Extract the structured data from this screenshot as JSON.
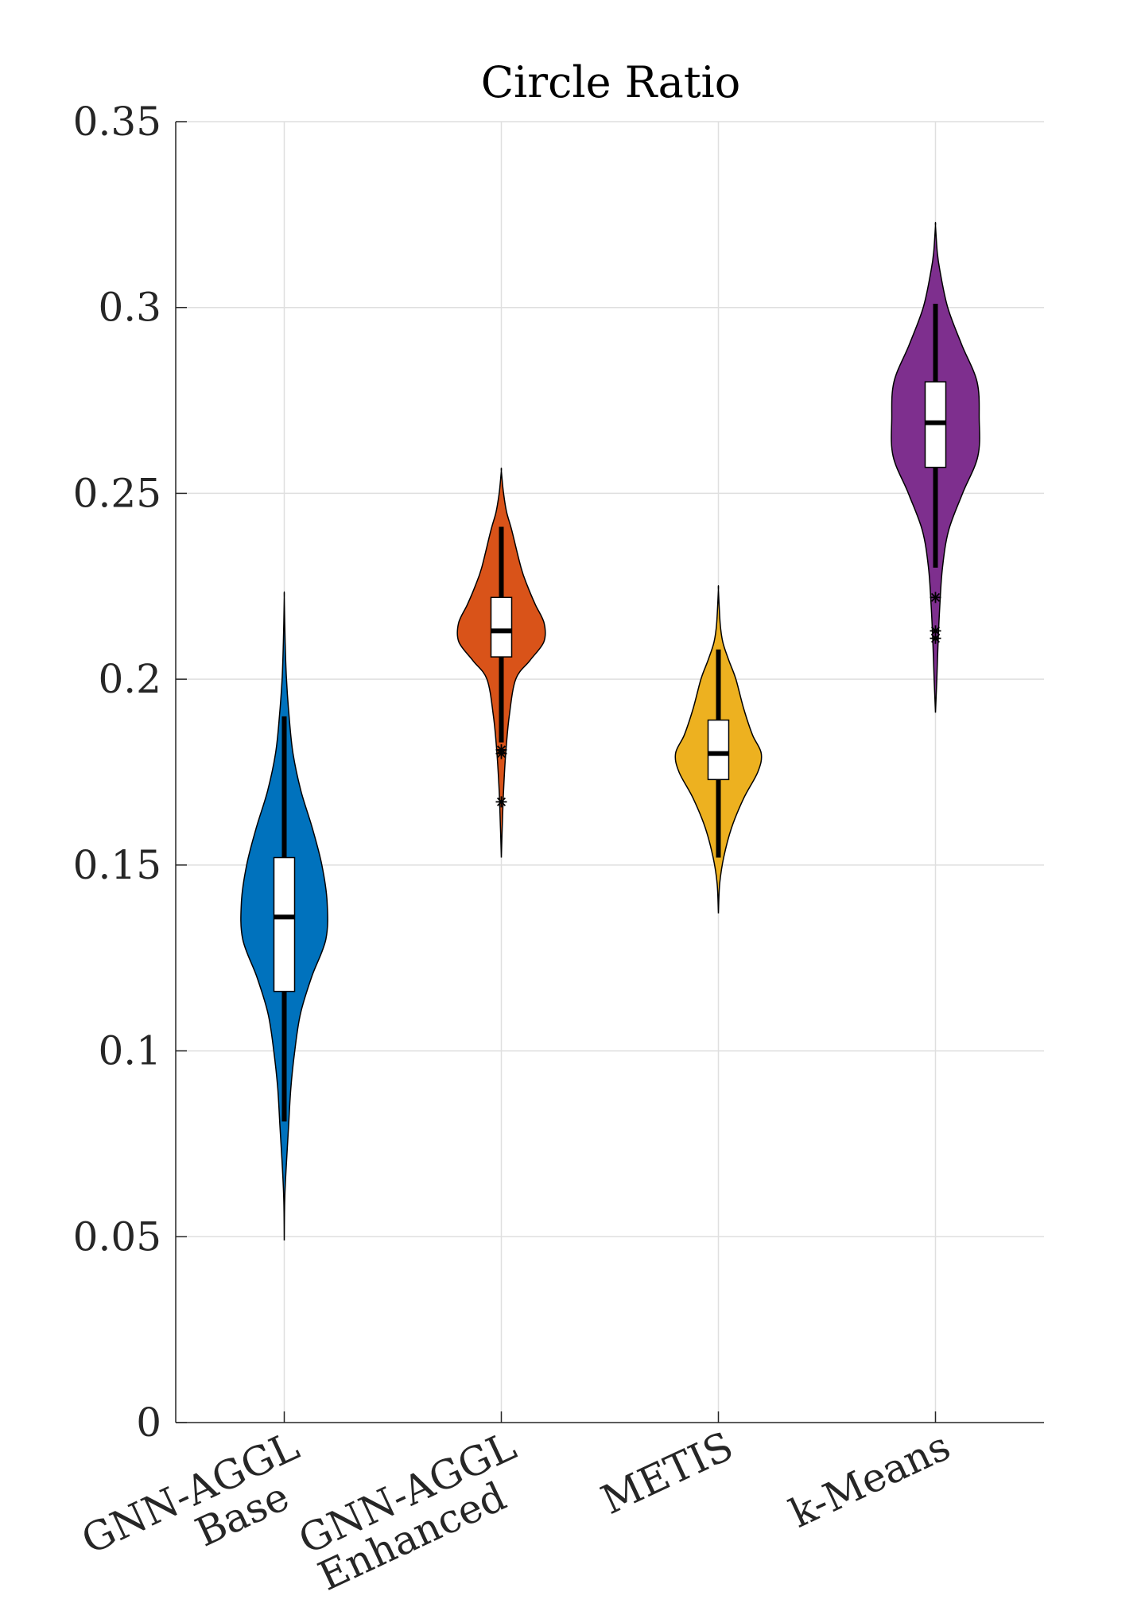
{
  "chart_data": {
    "type": "violin",
    "title": "Circle Ratio",
    "xlabel": "",
    "ylabel": "",
    "ylim": [
      0,
      0.35
    ],
    "yticks": [
      0,
      0.05,
      0.1,
      0.15,
      0.2,
      0.25,
      0.3,
      0.35
    ],
    "ytick_labels": [
      "0",
      "0.05",
      "0.1",
      "0.15",
      "0.2",
      "0.25",
      "0.3",
      "0.35"
    ],
    "grid": true,
    "categories": [
      {
        "line1": "GNN-AGGL",
        "line2": "Base"
      },
      {
        "line1": "GNN-AGGL",
        "line2": "Enhanced"
      },
      {
        "line1": "METIS",
        "line2": ""
      },
      {
        "line1": "k-Means",
        "line2": ""
      }
    ],
    "series": [
      {
        "color": "#0072BD",
        "min": 0.049,
        "max": 0.222,
        "q1": 0.116,
        "median": 0.136,
        "q3": 0.152,
        "whisker_low": 0.081,
        "whisker_high": 0.19,
        "outliers": [],
        "density": [
          [
            0.049,
            0
          ],
          [
            0.06,
            0.01
          ],
          [
            0.07,
            0.05
          ],
          [
            0.08,
            0.1
          ],
          [
            0.09,
            0.15
          ],
          [
            0.1,
            0.24
          ],
          [
            0.11,
            0.37
          ],
          [
            0.12,
            0.63
          ],
          [
            0.13,
            0.95
          ],
          [
            0.14,
            0.98
          ],
          [
            0.15,
            0.86
          ],
          [
            0.16,
            0.64
          ],
          [
            0.17,
            0.38
          ],
          [
            0.18,
            0.2
          ],
          [
            0.19,
            0.11
          ],
          [
            0.2,
            0.05
          ],
          [
            0.21,
            0.02
          ],
          [
            0.222,
            0
          ]
        ]
      },
      {
        "color": "#D95319",
        "min": 0.152,
        "max": 0.256,
        "q1": 0.206,
        "median": 0.213,
        "q3": 0.222,
        "whisker_low": 0.183,
        "whisker_high": 0.241,
        "outliers": [
          0.167,
          0.18,
          0.181
        ],
        "density": [
          [
            0.152,
            0
          ],
          [
            0.16,
            0.02
          ],
          [
            0.17,
            0.05
          ],
          [
            0.18,
            0.1
          ],
          [
            0.19,
            0.18
          ],
          [
            0.2,
            0.33
          ],
          [
            0.205,
            0.65
          ],
          [
            0.21,
            0.97
          ],
          [
            0.215,
            0.98
          ],
          [
            0.22,
            0.78
          ],
          [
            0.225,
            0.6
          ],
          [
            0.23,
            0.45
          ],
          [
            0.24,
            0.24
          ],
          [
            0.245,
            0.12
          ],
          [
            0.25,
            0.05
          ],
          [
            0.256,
            0
          ]
        ]
      },
      {
        "color": "#EDB120",
        "min": 0.137,
        "max": 0.224,
        "q1": 0.173,
        "median": 0.18,
        "q3": 0.189,
        "whisker_low": 0.152,
        "whisker_high": 0.208,
        "outliers": [],
        "density": [
          [
            0.137,
            0
          ],
          [
            0.145,
            0.03
          ],
          [
            0.152,
            0.12
          ],
          [
            0.16,
            0.3
          ],
          [
            0.168,
            0.58
          ],
          [
            0.175,
            0.9
          ],
          [
            0.18,
            0.98
          ],
          [
            0.185,
            0.78
          ],
          [
            0.192,
            0.58
          ],
          [
            0.2,
            0.4
          ],
          [
            0.205,
            0.24
          ],
          [
            0.21,
            0.1
          ],
          [
            0.215,
            0.04
          ],
          [
            0.224,
            0
          ]
        ]
      },
      {
        "color": "#7E2F8E",
        "min": 0.191,
        "max": 0.322,
        "q1": 0.257,
        "median": 0.269,
        "q3": 0.28,
        "whisker_low": 0.23,
        "whisker_high": 0.301,
        "outliers": [
          0.222,
          0.211,
          0.213
        ],
        "density": [
          [
            0.191,
            0
          ],
          [
            0.2,
            0.03
          ],
          [
            0.21,
            0.06
          ],
          [
            0.22,
            0.1
          ],
          [
            0.23,
            0.16
          ],
          [
            0.24,
            0.3
          ],
          [
            0.25,
            0.62
          ],
          [
            0.26,
            0.97
          ],
          [
            0.27,
            1.0
          ],
          [
            0.28,
            0.95
          ],
          [
            0.29,
            0.6
          ],
          [
            0.3,
            0.28
          ],
          [
            0.31,
            0.1
          ],
          [
            0.315,
            0.04
          ],
          [
            0.322,
            0
          ]
        ]
      }
    ]
  }
}
